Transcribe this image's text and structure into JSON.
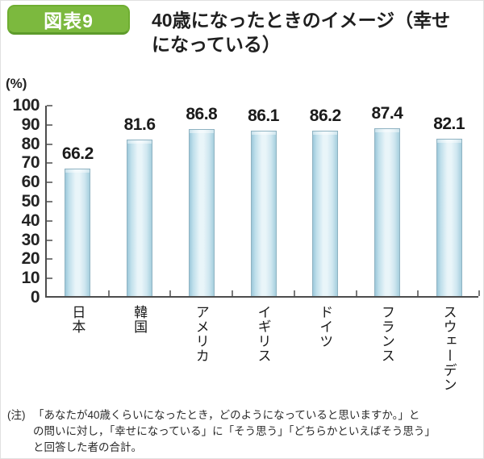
{
  "header": {
    "badge": "図表9",
    "title_line1": "40歳になったときのイメージ（幸せ",
    "title_line2": "になっている）"
  },
  "chart": {
    "percent_label": "(%)"
  },
  "chart_data": {
    "type": "bar",
    "title": "40歳になったときのイメージ（幸せになっている）",
    "categories": [
      "日本",
      "韓国",
      "アメリカ",
      "イギリス",
      "ドイツ",
      "フランス",
      "スウェーデン"
    ],
    "values": [
      66.2,
      81.6,
      86.8,
      86.1,
      86.2,
      87.4,
      82.1
    ],
    "xlabel": "",
    "ylabel": "(%)",
    "ylim": [
      0,
      100
    ],
    "ytick_step": 10,
    "grid": false,
    "legend": "none",
    "bar_colors": {
      "edge": "#9cc8da",
      "center": "#e9f5f9",
      "border": "#8fb3c2"
    }
  },
  "note": {
    "label": "(注)",
    "lines": [
      "「あなたが40歳くらいになったとき，どのようになっていると思いますか。」と",
      "の問いに対し，「幸せになっている」に「そう思う」「どちらかといえばそう思う」",
      "と回答した者の合計。"
    ]
  },
  "colors": {
    "badge_green": "#7cb93e",
    "axis": "#4d4d4d",
    "text": "#1a1a1a"
  }
}
